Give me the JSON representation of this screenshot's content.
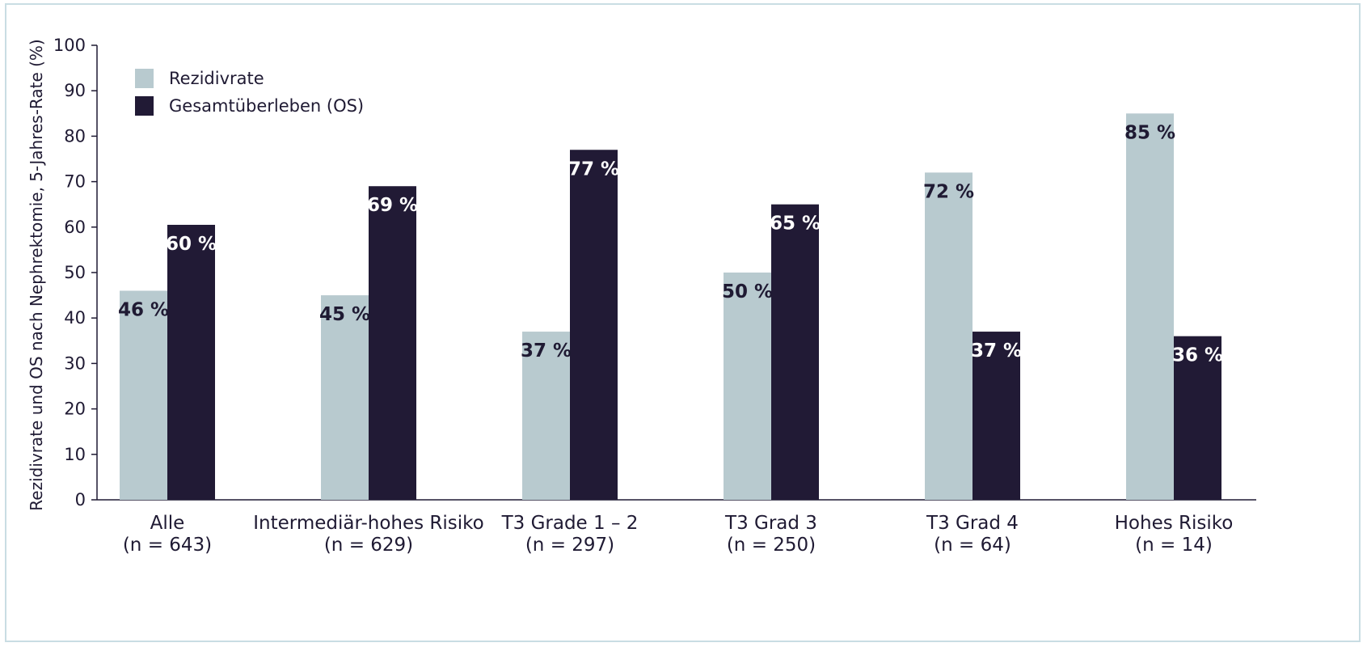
{
  "chart_data": {
    "type": "bar",
    "categories": [
      [
        "Alle",
        "(n = 643)"
      ],
      [
        "Intermediär-hohes Risiko",
        "(n = 629)"
      ],
      [
        "T3 Grade 1 – 2",
        "(n = 297)"
      ],
      [
        "T3 Grad 3",
        "(n = 250)"
      ],
      [
        "T3 Grad 4",
        "(n = 64)"
      ],
      [
        "Hohes Risiko",
        "(n = 14)"
      ]
    ],
    "series": [
      {
        "name": "Rezidivrate",
        "color": "#b8cacf",
        "label_color": "#1f1a33",
        "values": [
          46,
          45,
          37,
          50,
          72,
          85
        ],
        "labels": [
          "46 %",
          "45 %",
          "37 %",
          "50 %",
          "72 %",
          "85 %"
        ]
      },
      {
        "name": "Gesamtüberleben (OS)",
        "color": "#211a35",
        "label_color": "#ffffff",
        "values": [
          60.5,
          69,
          77,
          65,
          37,
          36
        ],
        "labels": [
          "60 %",
          "69 %",
          "77 %",
          "65 %",
          "37 %",
          "36 %"
        ]
      }
    ],
    "title": "",
    "xlabel": "",
    "ylabel": "Rezidivrate und OS nach Nephrektomie, 5-Jahres-Rate (%)",
    "ylim": [
      0,
      100
    ],
    "yticks": [
      0,
      10,
      20,
      30,
      40,
      50,
      60,
      70,
      80,
      90,
      100
    ],
    "grid": false,
    "legend_position": "top-left"
  }
}
